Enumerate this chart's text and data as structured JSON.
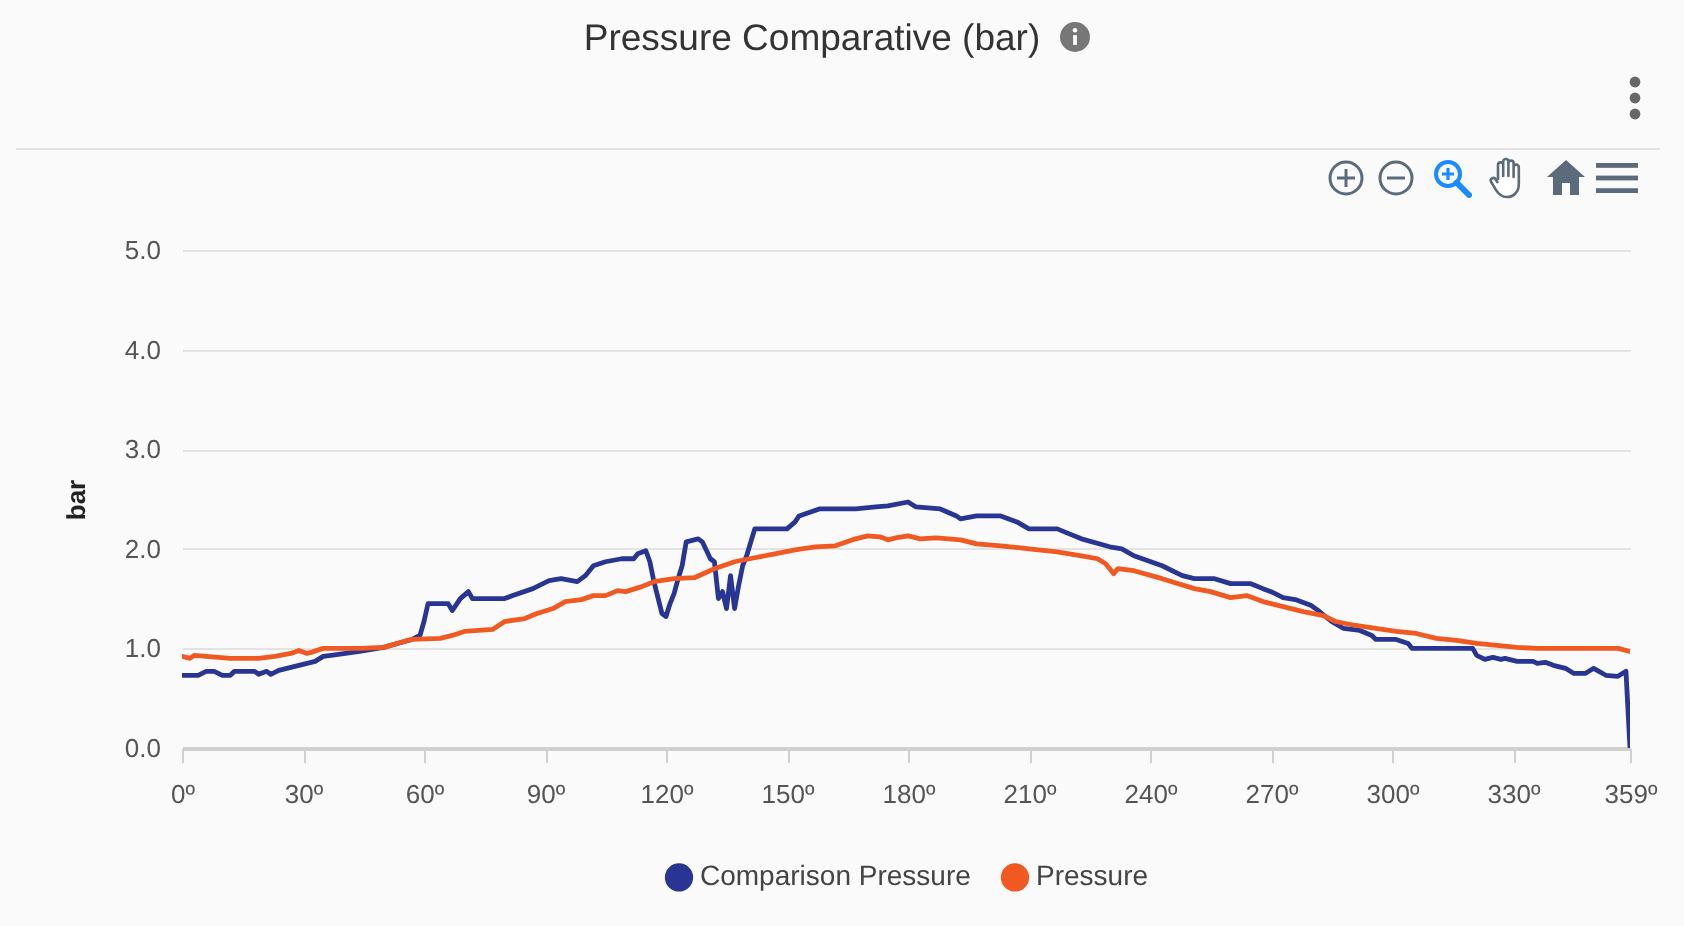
{
  "chart_data": {
    "type": "line",
    "title": "Pressure Comparative (bar)",
    "ylabel": "bar",
    "xlim": [
      0,
      359
    ],
    "ylim": [
      0,
      5
    ],
    "xticks": [
      {
        "value": 0,
        "label": "0º"
      },
      {
        "value": 30,
        "label": "30º"
      },
      {
        "value": 60,
        "label": "60º"
      },
      {
        "value": 90,
        "label": "90º"
      },
      {
        "value": 120,
        "label": "120º"
      },
      {
        "value": 150,
        "label": "150º"
      },
      {
        "value": 180,
        "label": "180º"
      },
      {
        "value": 210,
        "label": "210º"
      },
      {
        "value": 240,
        "label": "240º"
      },
      {
        "value": 270,
        "label": "270º"
      },
      {
        "value": 300,
        "label": "300º"
      },
      {
        "value": 330,
        "label": "330º"
      },
      {
        "value": 359,
        "label": "359º"
      }
    ],
    "yticks": [
      {
        "value": 0,
        "label": "0.0"
      },
      {
        "value": 1,
        "label": "1.0"
      },
      {
        "value": 2,
        "label": "2.0"
      },
      {
        "value": 3,
        "label": "3.0"
      },
      {
        "value": 4,
        "label": "4.0"
      },
      {
        "value": 5,
        "label": "5.0"
      }
    ],
    "grid": "y",
    "legend": "bottom",
    "line_style": "solid",
    "series": [
      {
        "name": "Comparison Pressure",
        "color": "#283593",
        "x": [
          0,
          4,
          6,
          8,
          10,
          12,
          13,
          18,
          19,
          21,
          22,
          24,
          27,
          31,
          33,
          35,
          37,
          44,
          50,
          57,
          59,
          60,
          61,
          66,
          67,
          69,
          71,
          72,
          80,
          82,
          87,
          91,
          94,
          98,
          100,
          102,
          105,
          109,
          112,
          113,
          115,
          116,
          117,
          119,
          120,
          121,
          122,
          123,
          124,
          125,
          127,
          128,
          129,
          131,
          132,
          133,
          134,
          135,
          136,
          137,
          138,
          139,
          140,
          142,
          150,
          152,
          153,
          158,
          167,
          172,
          175,
          180,
          182,
          188,
          192,
          193,
          197,
          203,
          207,
          210,
          217,
          220,
          223,
          230,
          233,
          236,
          243,
          248,
          251,
          256,
          260,
          265,
          268,
          270,
          273,
          276,
          280,
          282,
          285,
          288,
          292,
          295,
          296,
          301,
          304,
          305,
          320,
          321,
          323,
          325,
          327,
          328,
          331,
          335,
          336,
          338,
          340,
          343,
          345,
          348,
          350,
          353,
          356,
          358,
          359
        ],
        "values": [
          0.73,
          0.73,
          0.77,
          0.77,
          0.73,
          0.73,
          0.77,
          0.77,
          0.74,
          0.77,
          0.74,
          0.78,
          0.81,
          0.85,
          0.87,
          0.92,
          0.93,
          0.97,
          1.01,
          1.09,
          1.13,
          1.27,
          1.45,
          1.45,
          1.38,
          1.5,
          1.57,
          1.5,
          1.5,
          1.53,
          1.6,
          1.68,
          1.7,
          1.67,
          1.73,
          1.83,
          1.87,
          1.9,
          1.9,
          1.95,
          1.98,
          1.87,
          1.67,
          1.35,
          1.32,
          1.45,
          1.55,
          1.7,
          1.83,
          2.07,
          2.09,
          2.1,
          2.07,
          1.9,
          1.87,
          1.5,
          1.57,
          1.4,
          1.73,
          1.4,
          1.63,
          1.83,
          1.93,
          2.2,
          2.2,
          2.27,
          2.33,
          2.4,
          2.4,
          2.42,
          2.43,
          2.47,
          2.42,
          2.4,
          2.33,
          2.3,
          2.33,
          2.33,
          2.27,
          2.2,
          2.2,
          2.15,
          2.1,
          2.02,
          2.0,
          1.93,
          1.83,
          1.73,
          1.7,
          1.7,
          1.65,
          1.65,
          1.6,
          1.57,
          1.51,
          1.49,
          1.43,
          1.37,
          1.27,
          1.2,
          1.18,
          1.13,
          1.09,
          1.09,
          1.05,
          1.0,
          1.0,
          0.93,
          0.89,
          0.91,
          0.89,
          0.9,
          0.87,
          0.87,
          0.85,
          0.86,
          0.83,
          0.8,
          0.75,
          0.75,
          0.8,
          0.73,
          0.72,
          0.77,
          0
        ]
      },
      {
        "name": "Pressure",
        "color": "#f05a22",
        "x": [
          0,
          2,
          3,
          6,
          9,
          12,
          19,
          23,
          27,
          29,
          31,
          32,
          35,
          44,
          50,
          55,
          57,
          64,
          67,
          70,
          77,
          80,
          85,
          88,
          92,
          95,
          99,
          102,
          105,
          108,
          110,
          114,
          117,
          122,
          127,
          132,
          137,
          142,
          147,
          152,
          157,
          162,
          167,
          170,
          173,
          175,
          177,
          180,
          183,
          187,
          193,
          197,
          203,
          210,
          217,
          223,
          227,
          229,
          231,
          232,
          236,
          243,
          251,
          255,
          260,
          264,
          268,
          270,
          273,
          278,
          283,
          286,
          291,
          296,
          301,
          306,
          311,
          316,
          321,
          326,
          331,
          336,
          356,
          359
        ],
        "values": [
          0.92,
          0.9,
          0.93,
          0.92,
          0.91,
          0.9,
          0.9,
          0.92,
          0.95,
          0.98,
          0.95,
          0.96,
          1.0,
          1.0,
          1.01,
          1.07,
          1.09,
          1.1,
          1.13,
          1.17,
          1.19,
          1.27,
          1.3,
          1.35,
          1.4,
          1.47,
          1.49,
          1.53,
          1.53,
          1.58,
          1.57,
          1.62,
          1.67,
          1.7,
          1.71,
          1.8,
          1.87,
          1.91,
          1.95,
          1.99,
          2.02,
          2.03,
          2.1,
          2.13,
          2.12,
          2.09,
          2.11,
          2.13,
          2.1,
          2.11,
          2.09,
          2.05,
          2.03,
          2.0,
          1.97,
          1.93,
          1.9,
          1.85,
          1.75,
          1.8,
          1.78,
          1.7,
          1.6,
          1.57,
          1.51,
          1.53,
          1.47,
          1.45,
          1.42,
          1.37,
          1.33,
          1.27,
          1.23,
          1.2,
          1.17,
          1.15,
          1.1,
          1.08,
          1.05,
          1.03,
          1.01,
          1.0,
          1.0,
          0.97
        ]
      }
    ]
  }
}
